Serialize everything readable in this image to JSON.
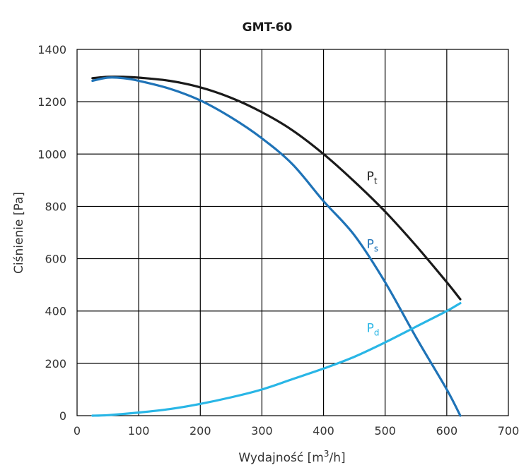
{
  "chart_data": {
    "type": "line",
    "title": "GMT-60",
    "xlabel": {
      "prefix": "Wydajność [m",
      "sup": "3",
      "suffix": "/h]"
    },
    "ylabel": "Ciśnienie [Pa]",
    "xlim": [
      0,
      700
    ],
    "ylim": [
      0,
      1400
    ],
    "x_ticks": [
      "0",
      "100",
      "200",
      "300",
      "400",
      "500",
      "600",
      "700"
    ],
    "y_ticks": [
      "0",
      "200",
      "400",
      "600",
      "800",
      "1000",
      "1200",
      "1400"
    ],
    "grid": true,
    "series": [
      {
        "base": "P",
        "sub": "t",
        "color": "#1a1a1a",
        "label_at": [
          470,
          900
        ],
        "x": [
          25,
          50,
          75,
          100,
          150,
          200,
          250,
          300,
          350,
          400,
          450,
          500,
          550,
          600,
          622
        ],
        "y": [
          1290,
          1295,
          1295,
          1292,
          1280,
          1255,
          1215,
          1160,
          1090,
          1000,
          895,
          780,
          650,
          510,
          445
        ]
      },
      {
        "base": "P",
        "sub": "s",
        "color": "#1f73b7",
        "label_at": [
          470,
          640
        ],
        "x": [
          25,
          50,
          75,
          100,
          150,
          200,
          250,
          300,
          350,
          400,
          450,
          500,
          550,
          600,
          622
        ],
        "y": [
          1280,
          1292,
          1290,
          1280,
          1250,
          1205,
          1140,
          1060,
          960,
          820,
          690,
          510,
          300,
          100,
          0
        ]
      },
      {
        "base": "P",
        "sub": "d",
        "color": "#29b6e6",
        "label_at": [
          470,
          320
        ],
        "x": [
          25,
          50,
          100,
          150,
          200,
          250,
          300,
          350,
          400,
          450,
          500,
          550,
          600,
          622
        ],
        "y": [
          0,
          2,
          12,
          25,
          45,
          70,
          100,
          140,
          180,
          225,
          280,
          340,
          400,
          430
        ]
      }
    ]
  }
}
